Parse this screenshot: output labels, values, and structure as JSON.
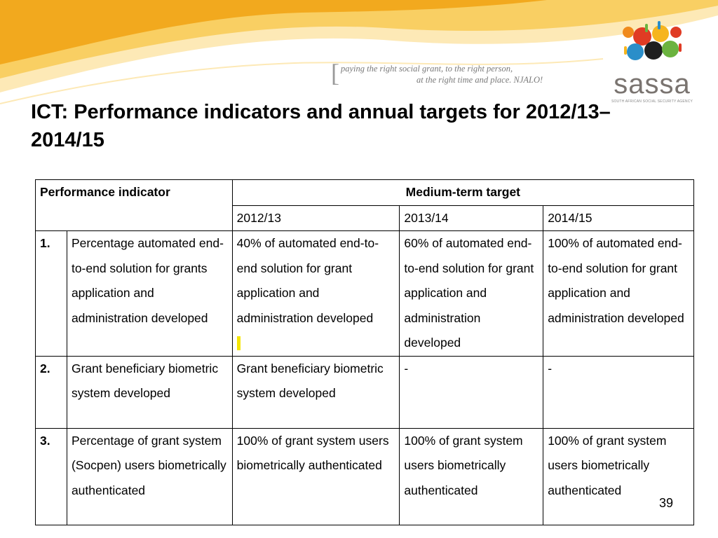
{
  "header": {
    "tagline_line1": "paying the right social grant, to the right person,",
    "tagline_line2": "at the right time and place. NJALO!",
    "logo_text": "sassa",
    "logo_subtext": "SOUTH AFRICAN SOCIAL SECURITY AGENCY"
  },
  "title": "ICT: Performance indicators and annual targets for 2012/13–2014/15",
  "table": {
    "col_indicator": "Performance indicator",
    "col_target": "Medium-term target",
    "years": [
      "2012/13",
      "2013/14",
      "2014/15"
    ],
    "rows": [
      {
        "num": "1.",
        "indicator": "Percentage automated end-to-end solution for grants application and administration developed",
        "y1": "40% of automated end-to-end solution for grant application and administration developed",
        "y2": "60% of automated end-to-end solution for grant application and administration developed",
        "y3": "100% of automated end-to-end solution for grant application and administration developed"
      },
      {
        "num": "2.",
        "indicator": "Grant beneficiary biometric system developed",
        "y1": "Grant beneficiary biometric system developed",
        "y2": "-",
        "y3": "-"
      },
      {
        "num": "3.",
        "indicator": "Percentage of grant system (Socpen) users biometrically authenticated",
        "y1": "100% of grant system users biometrically authenticated",
        "y2": "100% of grant system users biometrically authenticated",
        "y3": "100% of grant system users biometrically authenticated"
      }
    ]
  },
  "page_number": "39",
  "colors": {
    "swoosh_dark": "#f2a91e",
    "swoosh_light": "#fbd87a",
    "highlight": "#f5e600"
  }
}
